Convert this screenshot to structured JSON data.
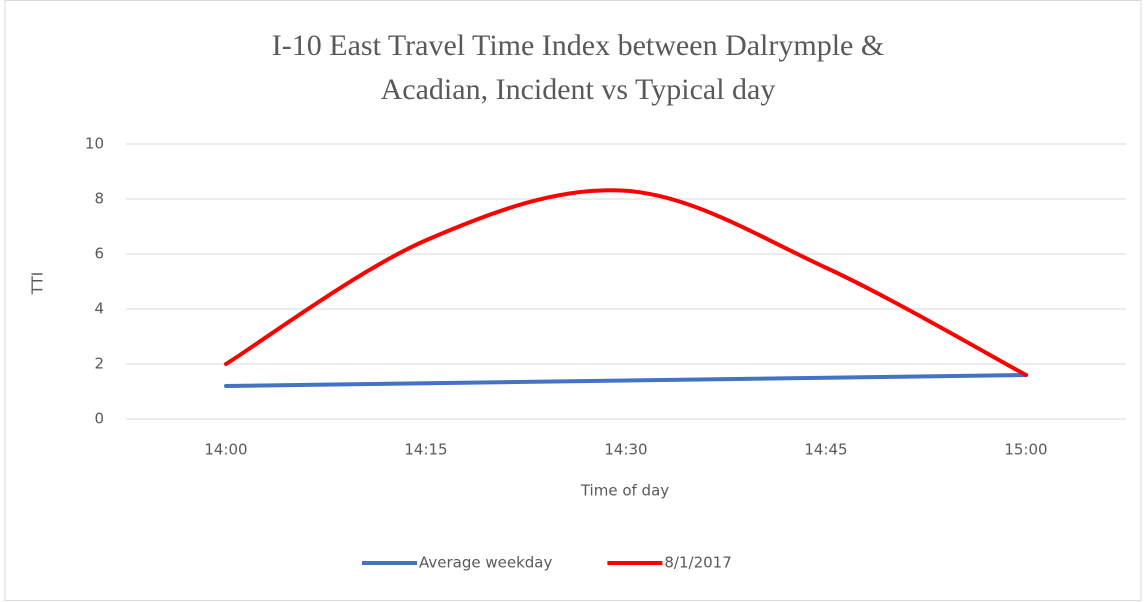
{
  "chart_data": {
    "type": "line",
    "title": "I-10 East Travel Time Index between Dalrymple & Acadian, Incident vs Typical day",
    "x_label": "Time of day",
    "y_label": "TTI",
    "categories": [
      "14:00",
      "14:15",
      "14:30",
      "14:45",
      "15:00"
    ],
    "series": [
      {
        "name": "Average weekday",
        "color": "#4472c4",
        "values": [
          1.2,
          1.3,
          1.4,
          1.5,
          1.6
        ]
      },
      {
        "name": "8/1/2017",
        "color": "#ff0000",
        "values": [
          2,
          6.5,
          8.3,
          5.5,
          1.6
        ]
      }
    ],
    "ylim": [
      0,
      10
    ],
    "yticks": [
      0,
      2,
      4,
      6,
      8,
      10
    ],
    "grid": true,
    "smooth": true,
    "legend": "bottom"
  }
}
